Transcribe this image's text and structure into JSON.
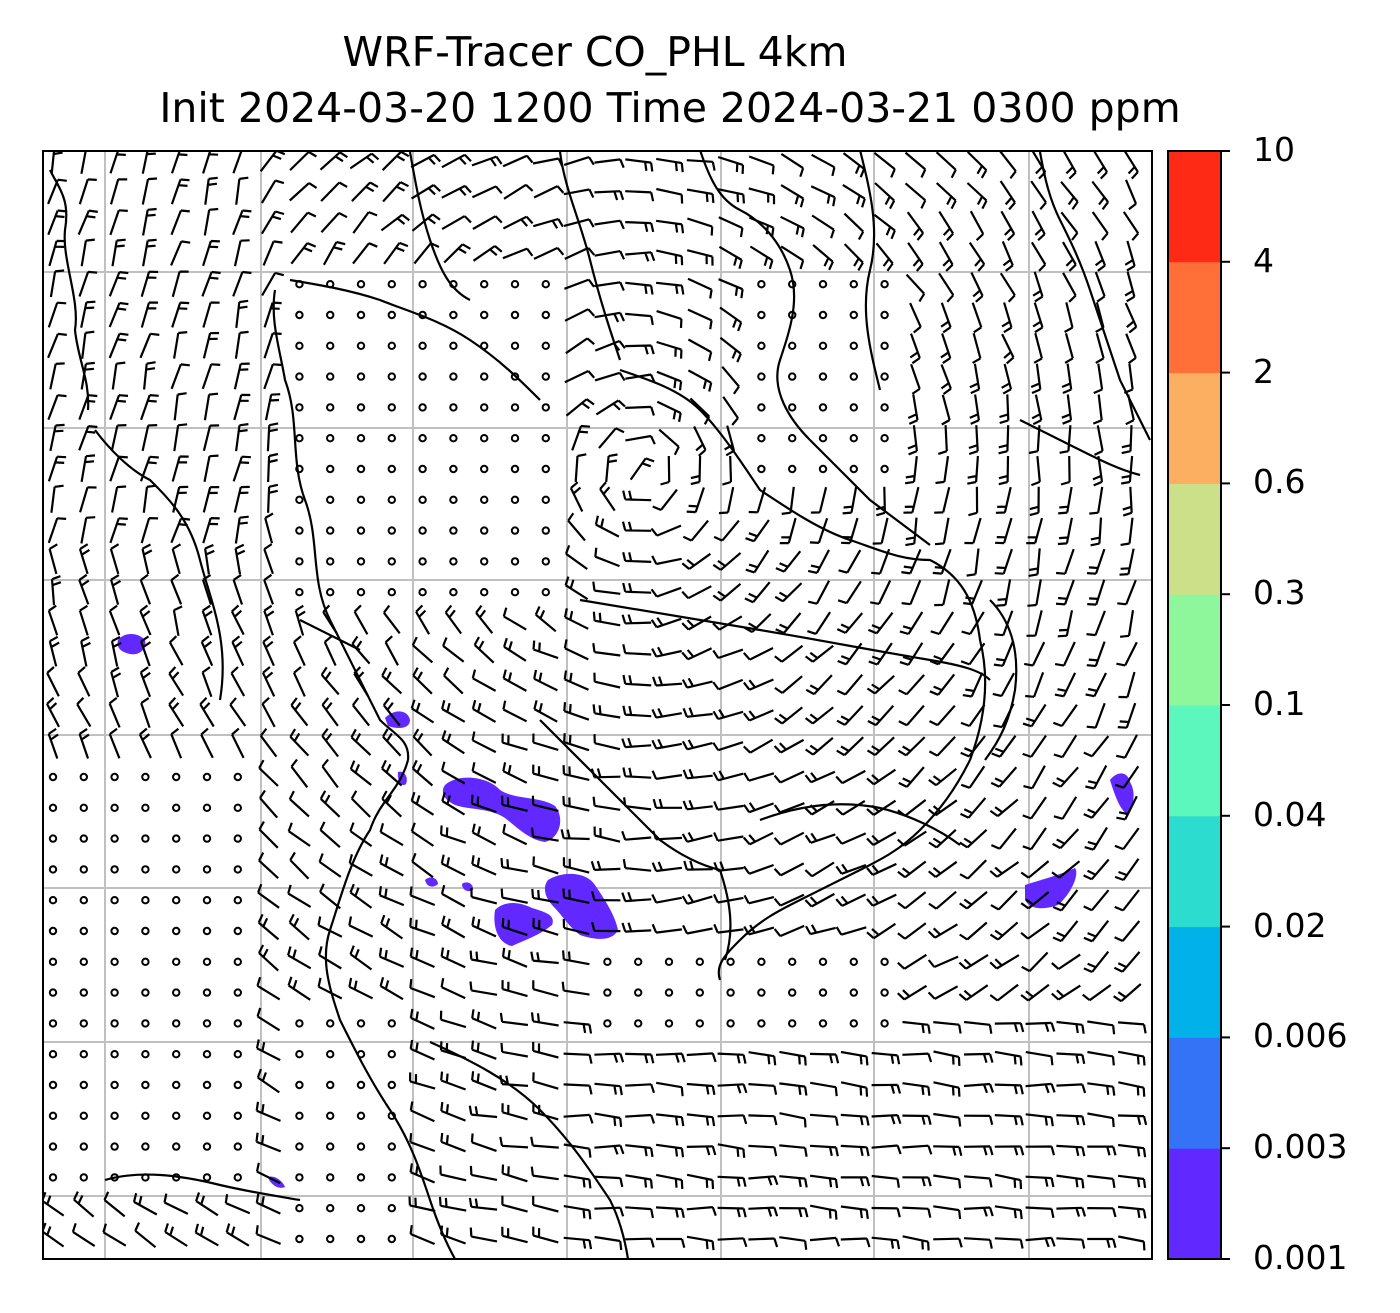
{
  "title": {
    "line1": "WRF-Tracer CO_PHL 4km",
    "line2": "Init 2024-03-20 1200 Time 2024-03-21 0300 ppm"
  },
  "colorbar": {
    "levels": [
      "0.001",
      "0.003",
      "0.006",
      "0.02",
      "0.04",
      "0.1",
      "0.3",
      "0.6",
      "2",
      "4",
      "10"
    ],
    "colors": [
      "#6128ff",
      "#3473f6",
      "#00b1ea",
      "#2bdccf",
      "#5cf7bc",
      "#8ef79c",
      "#cce08a",
      "#fcae61",
      "#ff6f37",
      "#ff2a15"
    ]
  },
  "map": {
    "field": "CO_PHL tracer concentration",
    "units": "ppm",
    "overlays": [
      "coastlines",
      "state borders",
      "lat-lon gridlines",
      "wind barbs"
    ],
    "gridline_color": "#c0c0c0"
  }
}
